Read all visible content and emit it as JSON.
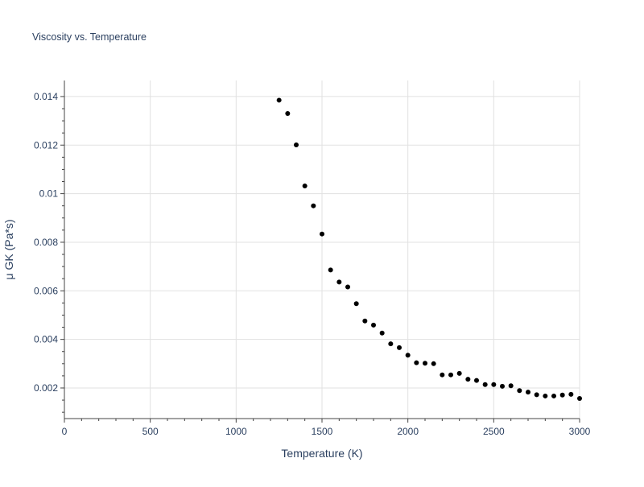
{
  "chart_data": {
    "type": "scatter",
    "title": "Viscosity vs. Temperature",
    "xlabel": "Temperature (K)",
    "ylabel": "μ GK (Pa*s)",
    "xlim": [
      0,
      3000
    ],
    "ylim": [
      0.00074,
      0.01466
    ],
    "grid": true,
    "x_ticks": [
      0,
      500,
      1000,
      1500,
      2000,
      2500,
      3000
    ],
    "x_tick_labels": [
      "0",
      "500",
      "1000",
      "1500",
      "2000",
      "2500",
      "3000"
    ],
    "y_ticks": [
      0.002,
      0.004,
      0.006,
      0.008,
      0.01,
      0.012,
      0.014
    ],
    "y_tick_labels": [
      "0.002",
      "0.004",
      "0.006",
      "0.008",
      "0.01",
      "0.012",
      "0.014"
    ],
    "marker_color": "#000000",
    "x": [
      1250,
      1300,
      1350,
      1400,
      1450,
      1500,
      1550,
      1600,
      1650,
      1700,
      1750,
      1800,
      1850,
      1900,
      1950,
      2000,
      2050,
      2100,
      2150,
      2200,
      2250,
      2300,
      2350,
      2400,
      2450,
      2500,
      2550,
      2600,
      2650,
      2700,
      2750,
      2800,
      2850,
      2900,
      2950,
      3000
    ],
    "y": [
      0.01385,
      0.0133,
      0.01201,
      0.01032,
      0.0095,
      0.00834,
      0.00686,
      0.00636,
      0.00616,
      0.00547,
      0.00476,
      0.00459,
      0.00426,
      0.00382,
      0.00366,
      0.00335,
      0.00304,
      0.00302,
      0.003,
      0.00254,
      0.00254,
      0.0026,
      0.00236,
      0.00231,
      0.00214,
      0.00214,
      0.00207,
      0.00209,
      0.00189,
      0.00183,
      0.00172,
      0.00167,
      0.00167,
      0.00171,
      0.00174,
      0.00157
    ]
  }
}
